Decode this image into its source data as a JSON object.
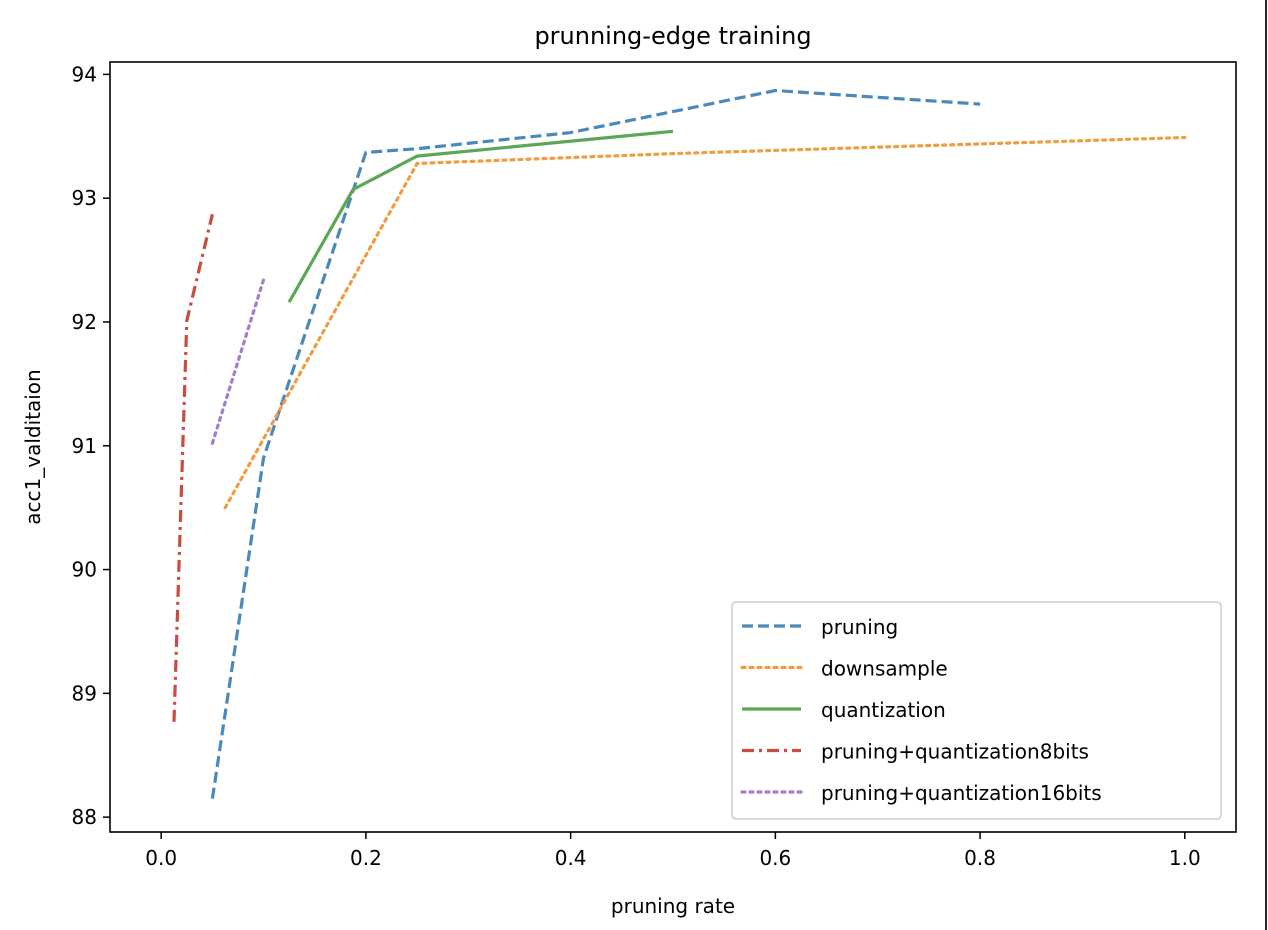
{
  "chart_data": {
    "type": "line",
    "title": "prunning-edge training",
    "xlabel": "pruning rate",
    "ylabel": "acc1_valditaion",
    "xlim": [
      -0.05,
      1.05
    ],
    "ylim": [
      87.88,
      94.1
    ],
    "xticks": [
      0.0,
      0.2,
      0.4,
      0.6,
      0.8,
      1.0
    ],
    "xtick_labels": [
      "0.0",
      "0.2",
      "0.4",
      "0.6",
      "0.8",
      "1.0"
    ],
    "yticks": [
      88,
      89,
      90,
      91,
      92,
      93,
      94
    ],
    "ytick_labels": [
      "88",
      "89",
      "90",
      "91",
      "92",
      "93",
      "94"
    ],
    "grid": false,
    "legend_position": "lower-right",
    "series": [
      {
        "name": "pruning",
        "color": "#4a89bb",
        "style": "dashed",
        "x": [
          0.05,
          0.1,
          0.2,
          0.25,
          0.4,
          0.6,
          0.8
        ],
        "y": [
          88.15,
          90.9,
          93.37,
          93.4,
          93.53,
          93.87,
          93.76
        ]
      },
      {
        "name": "downsample",
        "color": "#f29b40",
        "style": "dotted",
        "x": [
          0.0625,
          0.25,
          0.5,
          1.0
        ],
        "y": [
          90.5,
          93.28,
          93.36,
          93.49
        ]
      },
      {
        "name": "quantization",
        "color": "#5aa755",
        "style": "solid",
        "x": [
          0.125,
          0.1875,
          0.25,
          0.5
        ],
        "y": [
          92.16,
          93.07,
          93.34,
          93.54
        ]
      },
      {
        "name": "pruning+quantization8bits",
        "color": "#cb4b3f",
        "style": "dashdot",
        "x": [
          0.0125,
          0.025,
          0.05
        ],
        "y": [
          88.77,
          92.01,
          92.87
        ]
      },
      {
        "name": "pruning+quantization16bits",
        "color": "#a07fc4",
        "style": "dotted",
        "x": [
          0.05,
          0.1
        ],
        "y": [
          91.02,
          92.34
        ]
      }
    ]
  }
}
